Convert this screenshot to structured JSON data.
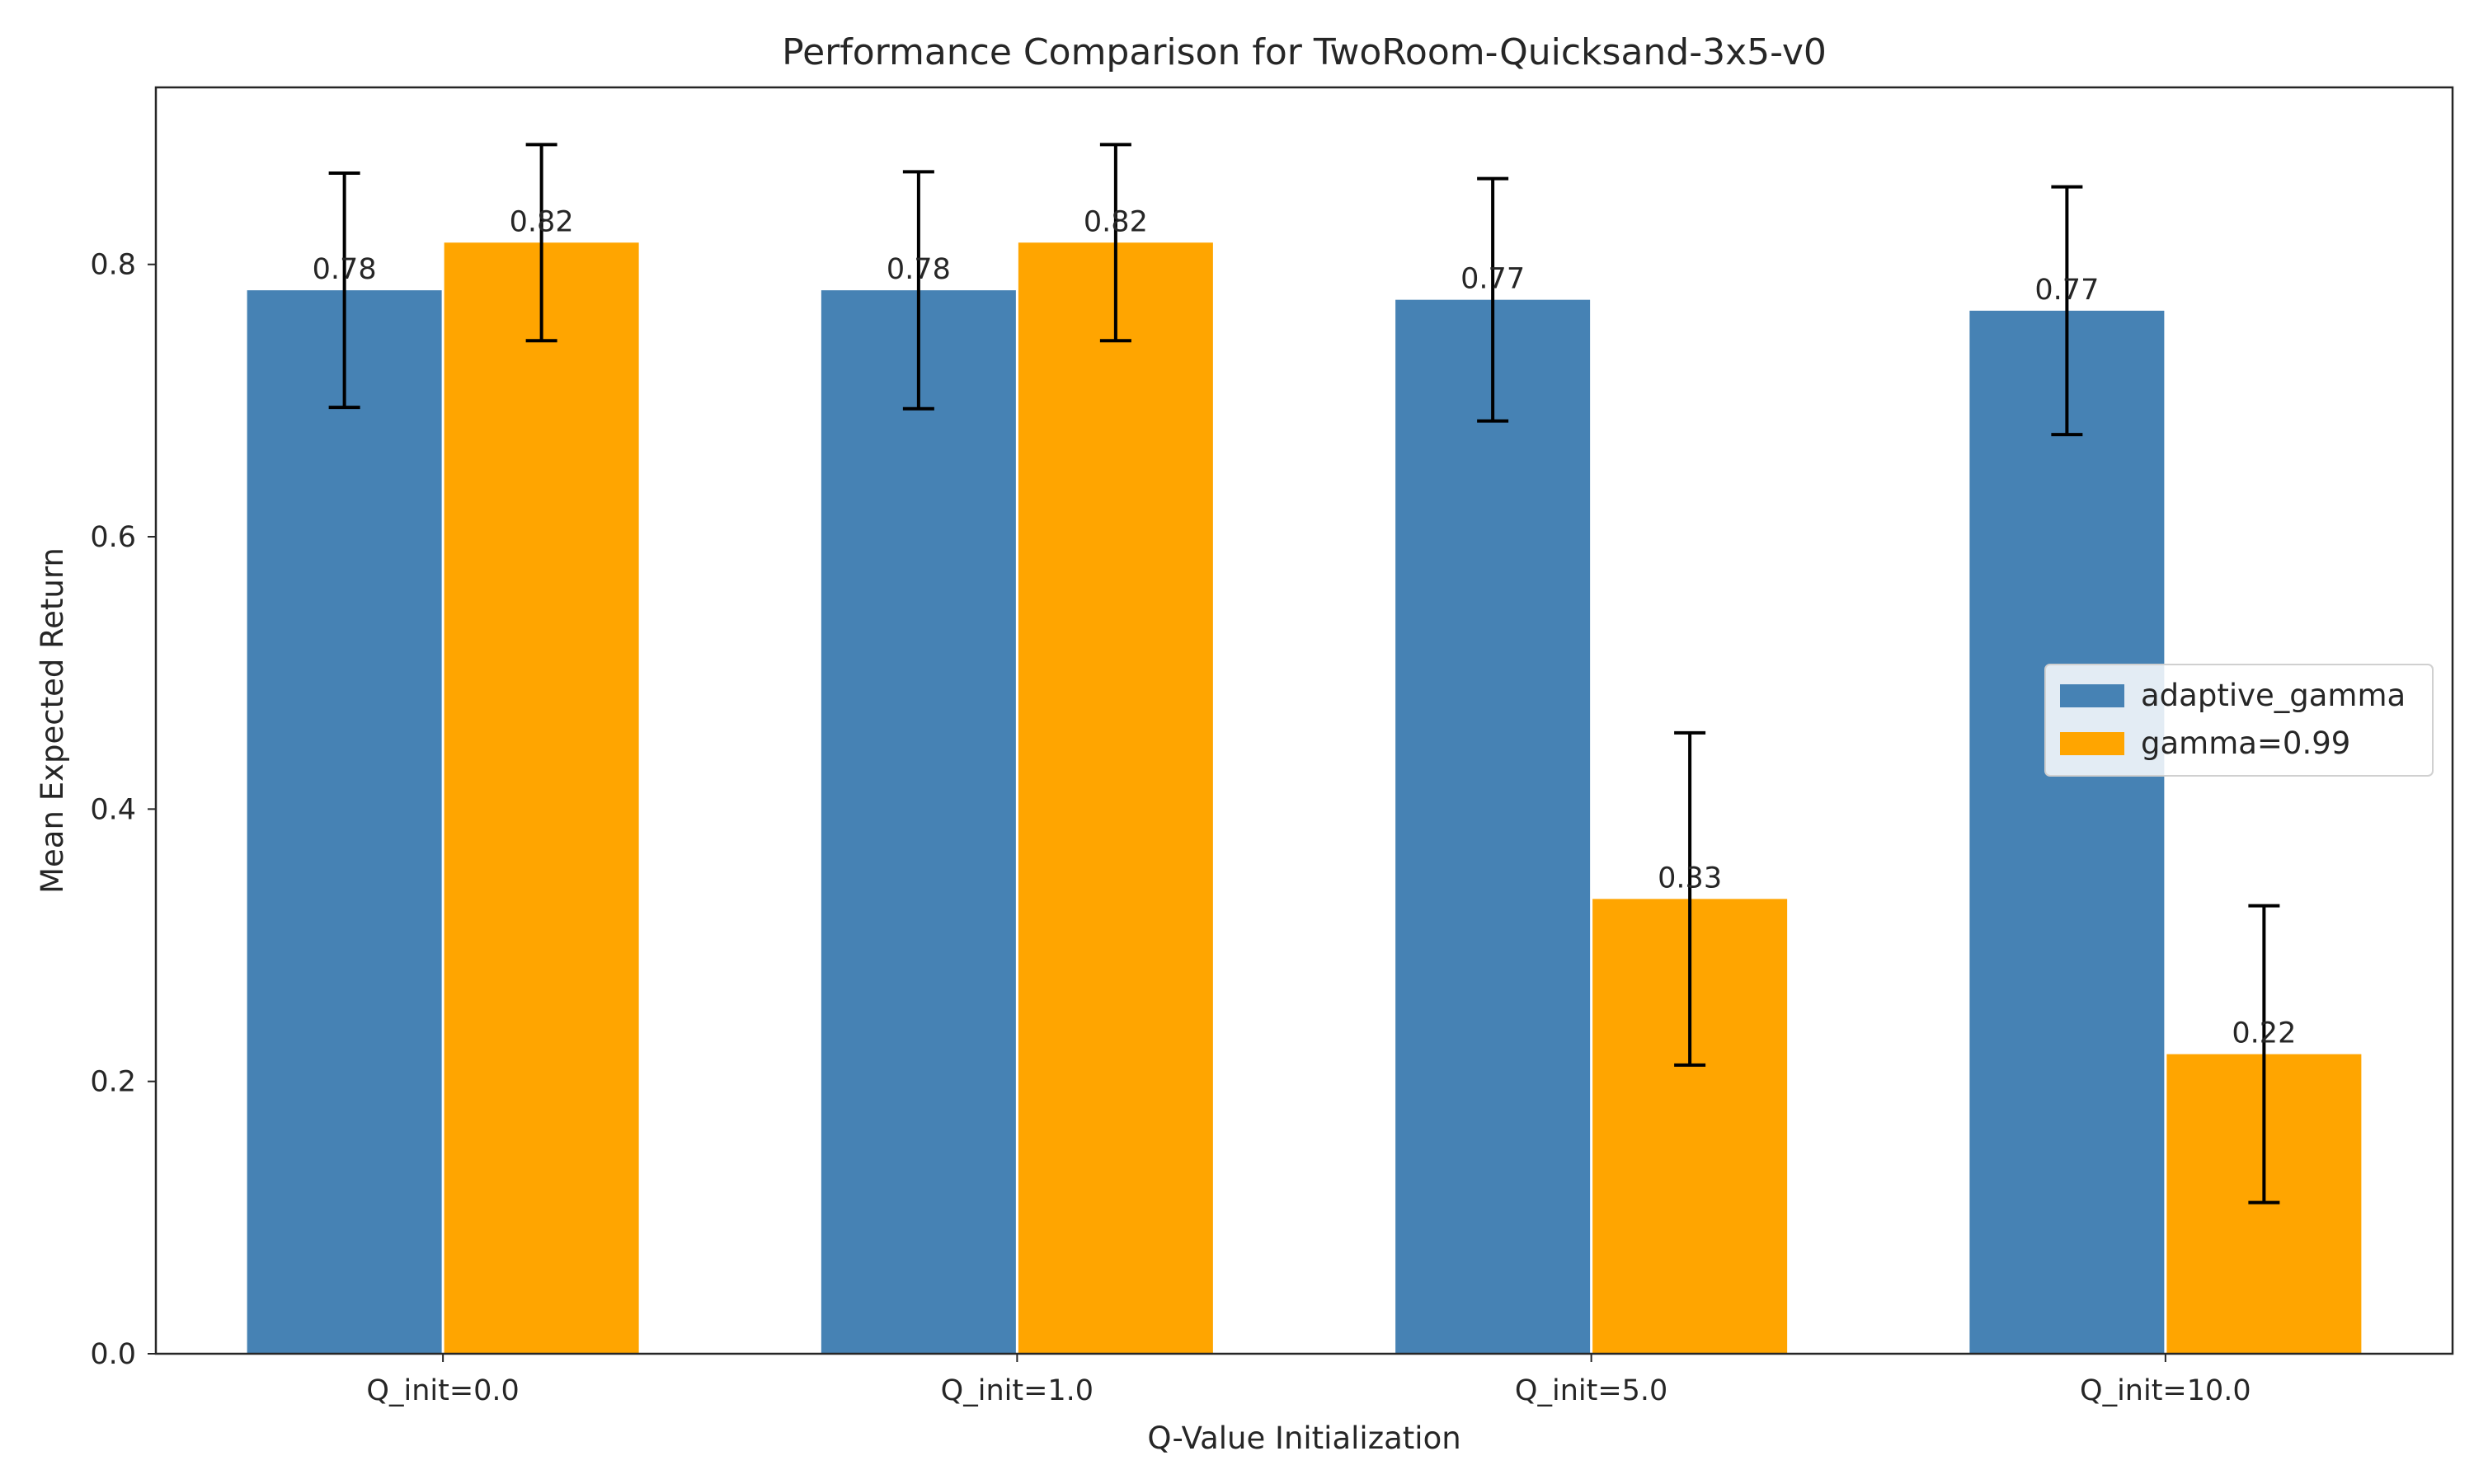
{
  "chart_data": {
    "type": "bar",
    "title": "Performance Comparison for TwoRoom-Quicksand-3x5-v0",
    "xlabel": "Q-Value Initialization",
    "ylabel": "Mean Expected Return",
    "categories": [
      "Q_init=0.0",
      "Q_init=1.0",
      "Q_init=5.0",
      "Q_init=10.0"
    ],
    "ylim": [
      0,
      0.93
    ],
    "yticks": [
      0.0,
      0.2,
      0.4,
      0.6,
      0.8
    ],
    "ytick_labels": [
      "0.0",
      "0.2",
      "0.4",
      "0.6",
      "0.8"
    ],
    "grid": false,
    "legend_position": "center-right",
    "series": [
      {
        "name": "adaptive_gamma",
        "color": "#4682b4",
        "values": [
          0.781,
          0.781,
          0.774,
          0.766
        ],
        "errors": [
          0.086,
          0.087,
          0.089,
          0.091
        ],
        "value_labels": [
          "0.78",
          "0.78",
          "0.77",
          "0.77"
        ]
      },
      {
        "name": "gamma=0.99",
        "color": "#ffa500",
        "values": [
          0.816,
          0.816,
          0.334,
          0.22
        ],
        "errors": [
          0.072,
          0.072,
          0.122,
          0.109
        ],
        "value_labels": [
          "0.82",
          "0.82",
          "0.33",
          "0.22"
        ]
      }
    ]
  }
}
